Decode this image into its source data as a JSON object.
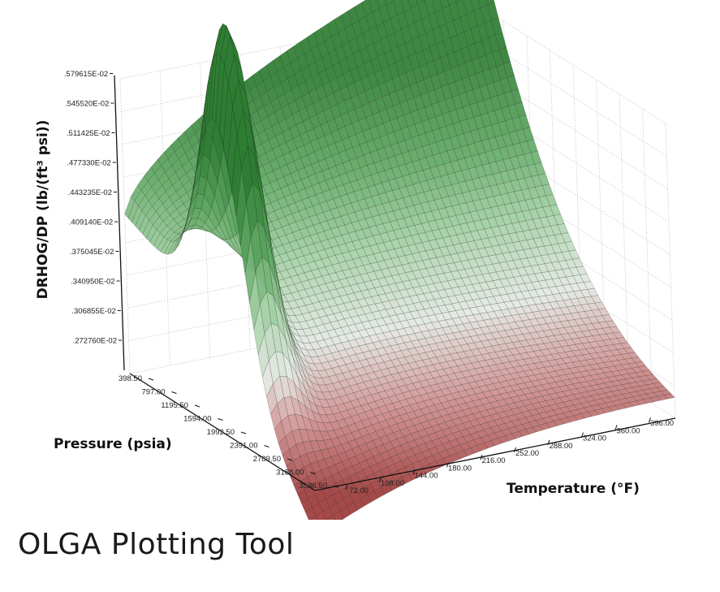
{
  "caption": "OLGA Plotting Tool",
  "chart_data": {
    "type": "surface3d",
    "title": "",
    "zlabel": "DRHOG/DP (lb/(ft³ psi))",
    "xlabel": "Temperature (°F)",
    "ylabel": "Pressure (psia)",
    "x_ticks": [
      "72.00",
      "108.00",
      "144.00",
      "180.00",
      "216.00",
      "252.00",
      "288.00",
      "324.00",
      "360.00",
      "396.00"
    ],
    "y_ticks": [
      "398.50",
      "797.00",
      "1195.50",
      "1594.00",
      "1992.50",
      "2391.00",
      "2789.50",
      "3188.00",
      "3586.50"
    ],
    "z_ticks": [
      ".272760E-02",
      ".306855E-02",
      ".340950E-02",
      ".375045E-02",
      ".409140E-02",
      ".443235E-02",
      ".477330E-02",
      ".511425E-02",
      ".545520E-02",
      ".579615E-02"
    ],
    "xlim": [
      72,
      396
    ],
    "ylim": [
      398.5,
      3586.5
    ],
    "zlim": [
      0.0027276,
      0.00579615
    ],
    "grid": true,
    "colors": {
      "high": "#2e7d32",
      "mid": "#a5d6a7",
      "low": "#9e3a3a",
      "mesh": "#1e2a1e"
    }
  }
}
